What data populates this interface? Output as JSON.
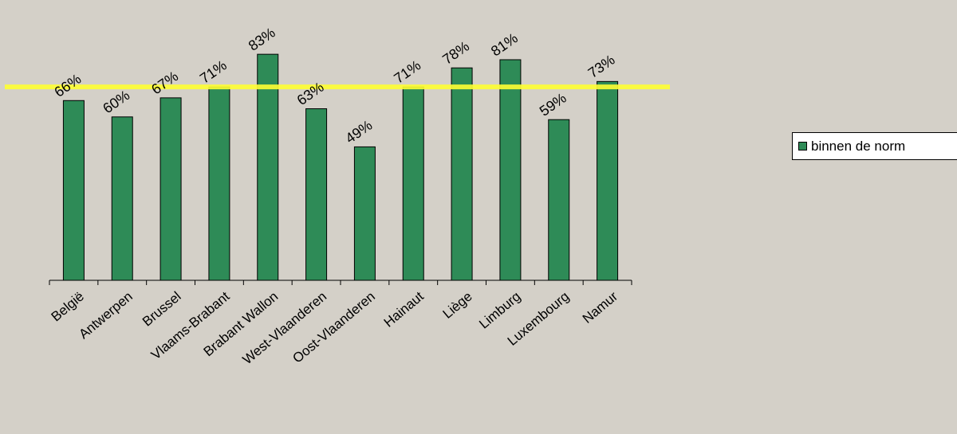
{
  "chart_data": {
    "type": "bar",
    "categories": [
      "België",
      "Antwerpen",
      "Brussel",
      "Vlaams-Brabant",
      "Brabant Wallon",
      "West-Vlaanderen",
      "Oost-Vlaanderen",
      "Hainaut",
      "Liège",
      "Limburg",
      "Luxembourg",
      "Namur"
    ],
    "series": [
      {
        "name": "binnen de norm",
        "values": [
          66,
          60,
          67,
          71,
          83,
          63,
          49,
          71,
          78,
          81,
          59,
          73
        ],
        "data_labels": [
          "66%",
          "60%",
          "67%",
          "71%",
          "83%",
          "63%",
          "49%",
          "71%",
          "78%",
          "81%",
          "59%",
          "73%"
        ]
      }
    ],
    "reference_line": {
      "value": 71,
      "color": "#ffff33"
    },
    "ylim": [
      0,
      100
    ],
    "grid": false,
    "legend_position": "right",
    "colors": {
      "bar": "#2e8b57",
      "bar_outline": "#000000",
      "background": "#d4d0c8"
    }
  }
}
